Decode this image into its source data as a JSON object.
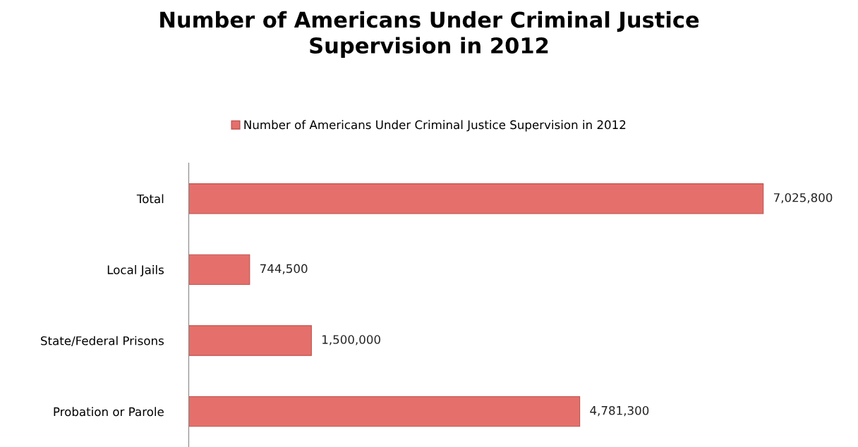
{
  "chart_data": {
    "type": "bar",
    "orientation": "horizontal",
    "title": "Number of Americans Under Criminal Justice\nSupervision in 2012",
    "categories": [
      "Total",
      "Local Jails",
      "State/Federal Prisons",
      "Probation or Parole"
    ],
    "series": [
      {
        "name": "Number of Americans Under Criminal Justice Supervision in 2012",
        "color": "#e5706b",
        "values": [
          7025800,
          744500,
          1500000,
          4781300
        ],
        "value_labels": [
          "7,025,800",
          "744,500",
          "1,500,000",
          "4,781,300"
        ]
      }
    ],
    "legend": "top",
    "grid": false
  }
}
